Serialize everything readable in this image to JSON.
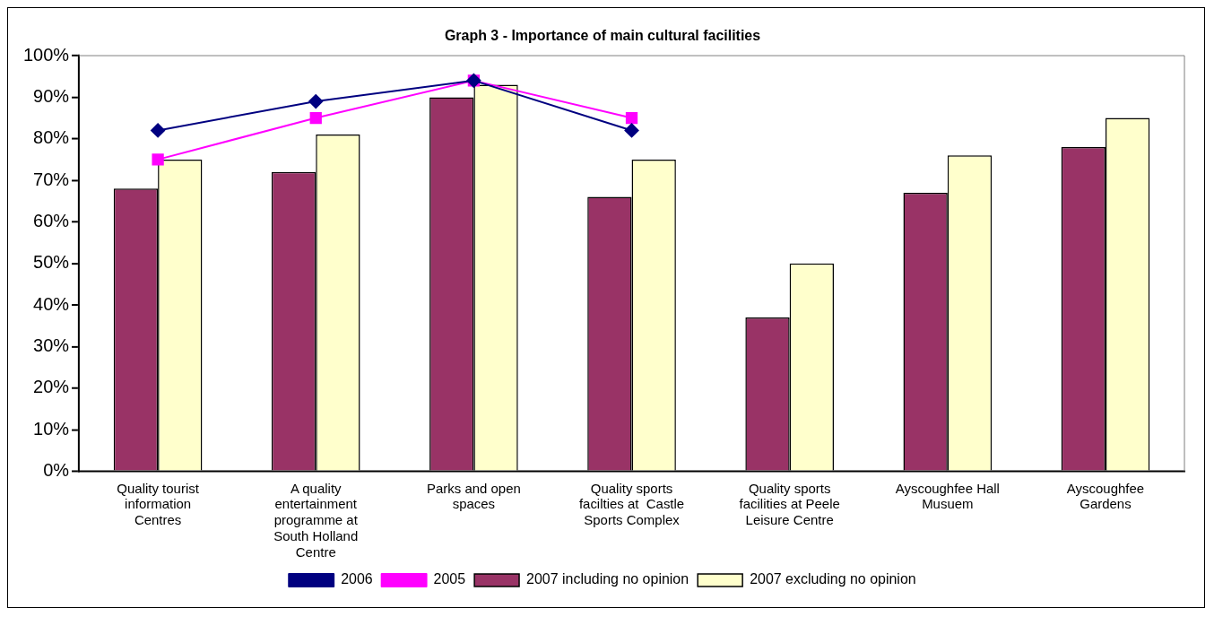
{
  "chart_data": {
    "type": "bar",
    "title": "Graph 3 - Importance of main cultural facilities",
    "categories": [
      "Quality tourist information Centres",
      "A quality entertainment programme at South Holland Centre",
      "Parks and open spaces",
      "Quality sports facilties at  Castle Sports Complex",
      "Quality sports facilities at Peele Leisure Centre",
      "Ayscoughfee Hall Musuem",
      "Ayscoughfee Gardens"
    ],
    "series": [
      {
        "name": "2007 including no opinion",
        "color": "#993366",
        "values": [
          68,
          72,
          90,
          66,
          37,
          67,
          78
        ]
      },
      {
        "name": "2007 excluding no opinion",
        "color": "#ffffcc",
        "values": [
          75,
          81,
          93,
          75,
          50,
          76,
          85
        ]
      },
      {
        "name": "2006",
        "type": "line",
        "color": "#000080",
        "marker": "diamond",
        "values": [
          82,
          89,
          94,
          82,
          null,
          null,
          null
        ]
      },
      {
        "name": "2005",
        "type": "line",
        "color": "#ff00ff",
        "marker": "square",
        "values": [
          75,
          85,
          94,
          85,
          null,
          null,
          null
        ]
      }
    ],
    "ylim": [
      0,
      100
    ],
    "yticks": [
      {
        "value": 0,
        "label": "0%"
      },
      {
        "value": 10,
        "label": "10%"
      },
      {
        "value": 20,
        "label": "20%"
      },
      {
        "value": 30,
        "label": "30%"
      },
      {
        "value": 40,
        "label": "40%"
      },
      {
        "value": 50,
        "label": "50%"
      },
      {
        "value": 60,
        "label": "60%"
      },
      {
        "value": 70,
        "label": "70%"
      },
      {
        "value": 80,
        "label": "80%"
      },
      {
        "value": 90,
        "label": "90%"
      },
      {
        "value": 100,
        "label": "100%"
      }
    ],
    "grid": false,
    "legend": "bottom"
  }
}
